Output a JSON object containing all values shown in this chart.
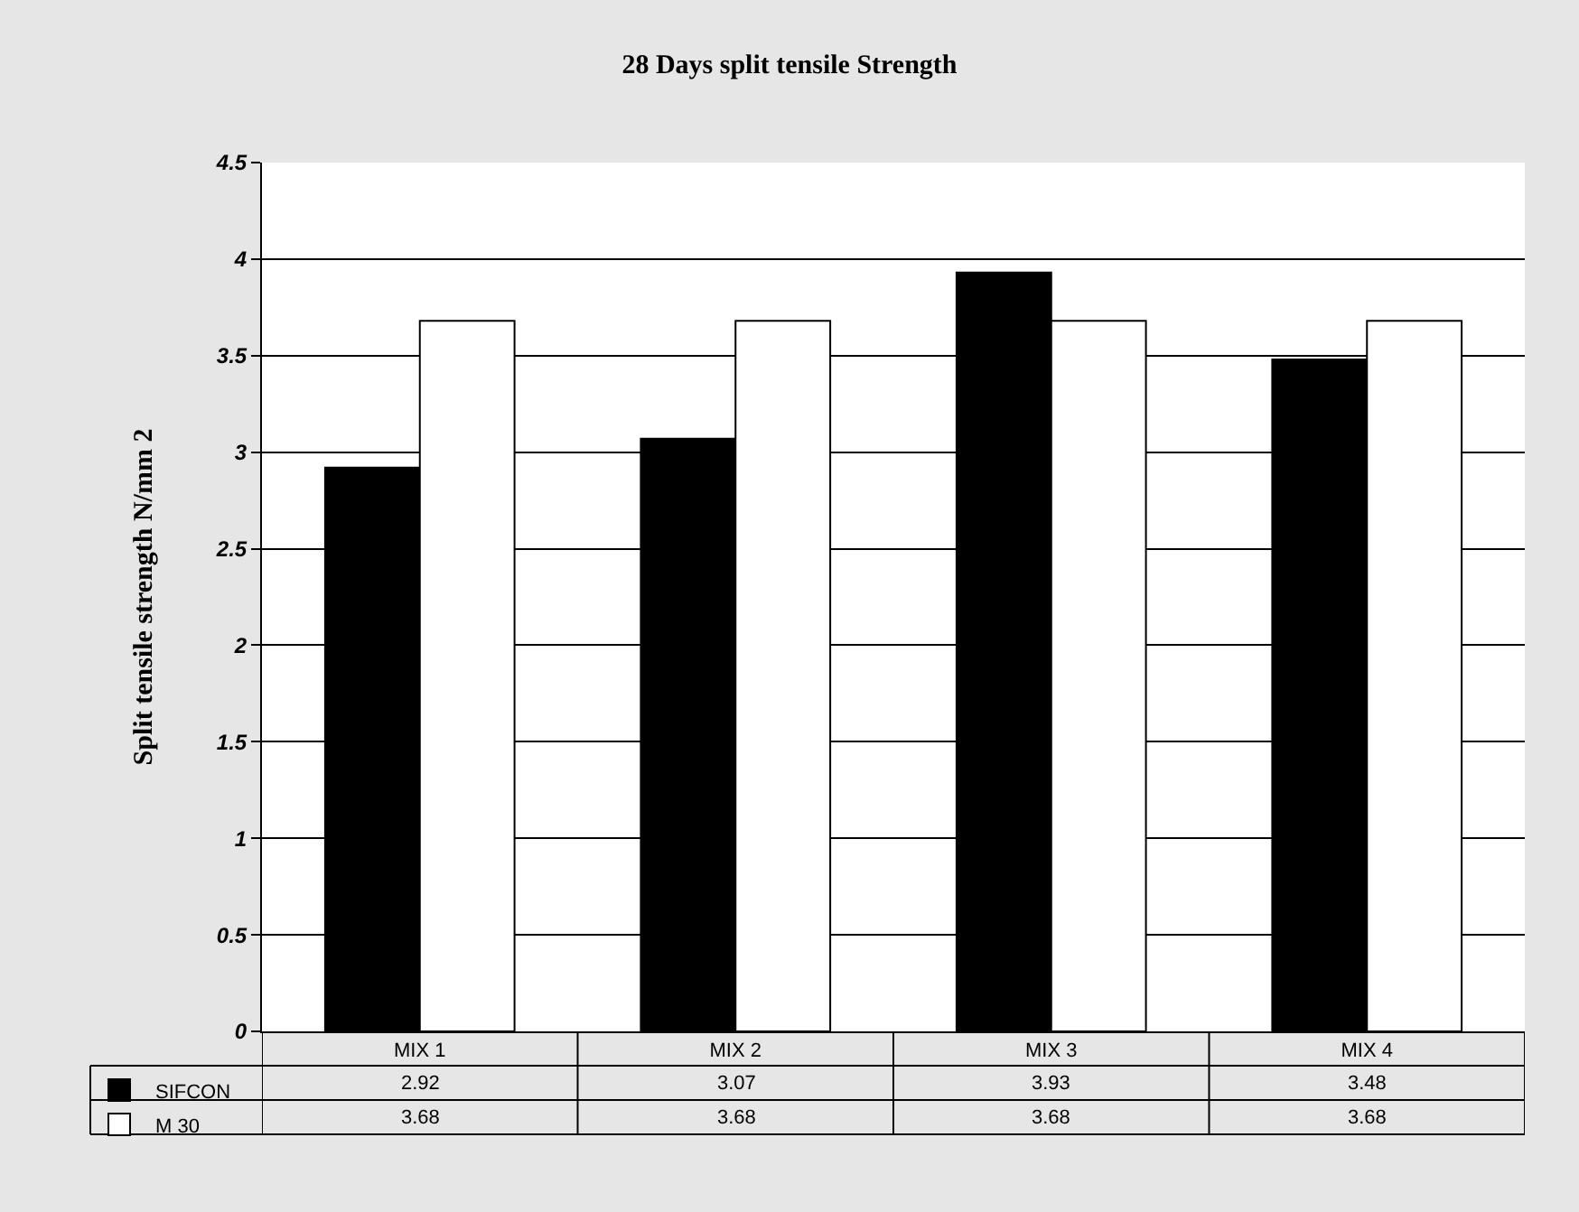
{
  "chart_data": {
    "type": "bar",
    "title": "28 Days split tensile Strength",
    "ylabel": "Split tensile strength N/mm 2",
    "categories": [
      "MIX 1",
      "MIX 2",
      "MIX 3",
      "MIX 4"
    ],
    "series": [
      {
        "name": "SIFCON",
        "color": "#000000",
        "values": [
          2.92,
          3.07,
          3.93,
          3.48
        ]
      },
      {
        "name": "M 30",
        "color": "#ffffff",
        "values": [
          3.68,
          3.68,
          3.68,
          3.68
        ]
      }
    ],
    "ylim": [
      0,
      4.5
    ],
    "yticks": [
      0,
      0.5,
      1,
      1.5,
      2,
      2.5,
      3,
      3.5,
      4,
      4.5
    ],
    "grid": "y",
    "legend": "bottom left",
    "data_labels": true
  }
}
